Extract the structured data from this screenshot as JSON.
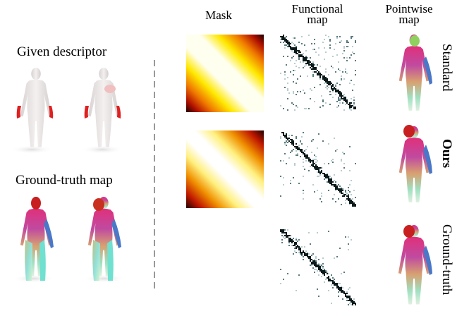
{
  "left": {
    "given_descriptor_label": "Given descriptor",
    "ground_truth_map_label": "Ground-truth map"
  },
  "headers": {
    "mask": "Mask",
    "functional_map_line1": "Functional",
    "functional_map_line2": "map",
    "pointwise_map_line1": "Pointwise",
    "pointwise_map_line2": "map"
  },
  "rows": [
    {
      "label": "Standard",
      "bold": false
    },
    {
      "label": "Ours",
      "bold": true
    },
    {
      "label": "Ground-truth",
      "bold": false
    }
  ],
  "colors": {
    "mask_dark": "#2a0000",
    "mask_red": "#cc1500",
    "mask_orange": "#f08a00",
    "mask_yellow": "#ffee00",
    "descriptor_red": "#e02020",
    "divider": "#999999"
  }
}
